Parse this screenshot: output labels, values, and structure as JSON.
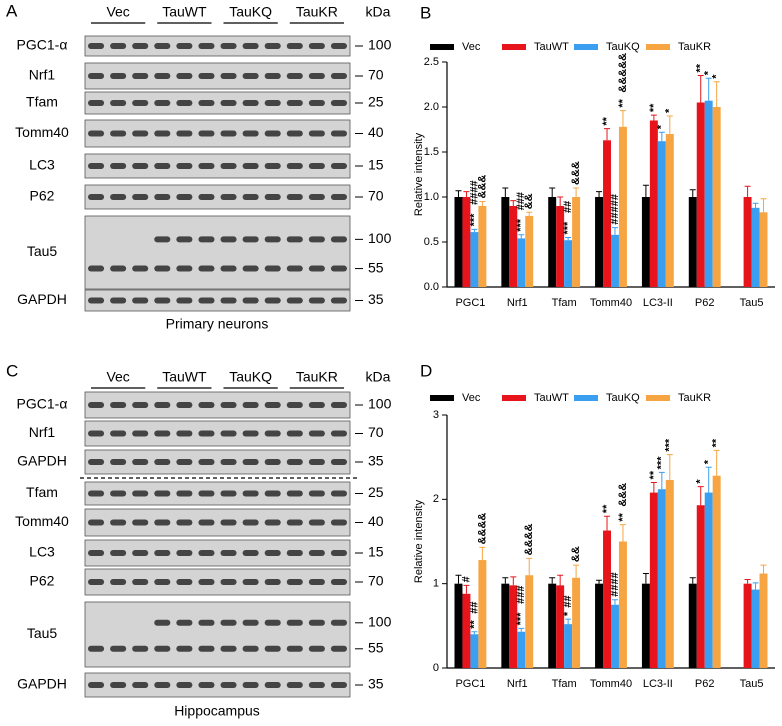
{
  "panels": [
    "A",
    "B",
    "C",
    "D"
  ],
  "blots": [
    {
      "groups": [
        "Vec",
        "TauWT",
        "TauKQ",
        "TauKR"
      ],
      "unit": "kDa",
      "caption": "Primary neurons",
      "rows": [
        {
          "label": "PGC1-α",
          "kda": [
            "100"
          ]
        },
        {
          "label": "Nrf1",
          "kda": [
            "70"
          ]
        },
        {
          "label": "Tfam",
          "kda": [
            "25"
          ]
        },
        {
          "label": "Tomm40",
          "kda": [
            "40"
          ]
        },
        {
          "label": "LC3",
          "kda": [
            "15"
          ]
        },
        {
          "label": "P62",
          "kda": [
            "70"
          ]
        },
        {
          "label": "Tau5",
          "kda": [
            "100",
            "55"
          ]
        },
        {
          "label": "GAPDH",
          "kda": [
            "35"
          ]
        }
      ]
    },
    {
      "groups": [
        "Vec",
        "TauWT",
        "TauKQ",
        "TauKR"
      ],
      "unit": "kDa",
      "caption": "Hippocampus",
      "rows": [
        {
          "label": "PGC1-α",
          "kda": [
            "100"
          ]
        },
        {
          "label": "Nrf1",
          "kda": [
            "70"
          ]
        },
        {
          "label": "GAPDH",
          "kda": [
            "35"
          ]
        },
        {
          "label": "Tfam",
          "kda": [
            "25"
          ]
        },
        {
          "label": "Tomm40",
          "kda": [
            "40"
          ]
        },
        {
          "label": "LC3",
          "kda": [
            "15"
          ]
        },
        {
          "label": "P62",
          "kda": [
            "70"
          ]
        },
        {
          "label": "Tau5",
          "kda": [
            "100",
            "55"
          ]
        },
        {
          "label": "GAPDH",
          "kda": [
            "35"
          ]
        }
      ]
    }
  ],
  "chart_data": [
    {
      "type": "bar",
      "y_label": "Relative intensity",
      "categories": [
        "PGC1",
        "Nrf1",
        "Tfam",
        "Tomm40",
        "LC3-II",
        "P62",
        "Tau5"
      ],
      "ylim": [
        0,
        2.5
      ],
      "yticks": [
        {
          "value": 0,
          "label": "0.0"
        },
        0.5,
        {
          "value": 1,
          "label": "1.0"
        },
        1.5,
        {
          "value": 2,
          "label": "2.0"
        },
        2.5
      ],
      "significance_colors": {
        "*": "#000000",
        "#": "#e8141c",
        "&": "#3a9ff0"
      },
      "series": [
        {
          "name": "Vec",
          "color": "#000000",
          "values": [
            1,
            1,
            1,
            1,
            1,
            1,
            null
          ],
          "errors": [
            0.07,
            0.1,
            0.1,
            0.06,
            0.13,
            0.08,
            null
          ]
        },
        {
          "name": "TauWT",
          "color": "#e8141c",
          "values": [
            1.0,
            0.9,
            0.9,
            1.63,
            1.85,
            2.05,
            1.0
          ],
          "errors": [
            0.06,
            0.06,
            0.1,
            0.13,
            0.06,
            0.3,
            0.12
          ],
          "significance": [
            null,
            null,
            null,
            [
              "**"
            ],
            [
              "**"
            ],
            [
              "**"
            ],
            null
          ]
        },
        {
          "name": "TauKQ",
          "color": "#3a9ff0",
          "values": [
            0.61,
            0.54,
            0.52,
            0.58,
            1.62,
            2.07,
            0.88
          ],
          "errors": [
            0.03,
            0.04,
            0.03,
            0.08,
            0.1,
            0.25,
            0.05
          ],
          "significance": [
            [
              "***",
              "####"
            ],
            [
              "***",
              "###"
            ],
            [
              "***",
              "##"
            ],
            [
              "#####"
            ],
            [
              "*"
            ],
            [
              "*"
            ],
            null
          ]
        },
        {
          "name": "TauKR",
          "color": "#f7a543",
          "values": [
            0.9,
            0.79,
            1.0,
            1.78,
            1.7,
            2.0,
            0.83
          ],
          "errors": [
            0.05,
            0.04,
            0.1,
            0.18,
            0.2,
            0.28,
            0.15
          ],
          "significance": [
            [
              "&&&"
            ],
            [
              "&&"
            ],
            [
              "&&&"
            ],
            [
              "**",
              "&&&&&"
            ],
            [
              "*"
            ],
            [
              "*"
            ],
            null
          ]
        }
      ]
    },
    {
      "type": "bar",
      "y_label": "Relative intensity",
      "categories": [
        "PGC1",
        "Nrf1",
        "Tfam",
        "Tomm40",
        "LC3-II",
        "P62",
        "Tau5"
      ],
      "ylim": [
        0,
        3
      ],
      "yticks": [
        0,
        1,
        2,
        3
      ],
      "significance_colors": {
        "*": "#000000",
        "#": "#e8141c",
        "&": "#3a9ff0"
      },
      "series": [
        {
          "name": "Vec",
          "color": "#000000",
          "values": [
            1,
            1,
            1,
            1,
            1,
            1,
            null
          ],
          "errors": [
            0.1,
            0.07,
            0.07,
            0.04,
            0.12,
            0.07,
            null
          ]
        },
        {
          "name": "TauWT",
          "color": "#e8141c",
          "values": [
            0.88,
            0.98,
            0.98,
            1.63,
            2.08,
            1.93,
            1.0
          ],
          "errors": [
            0.1,
            0.1,
            0.12,
            0.17,
            0.12,
            0.22,
            0.05
          ],
          "significance": [
            [
              "#"
            ],
            null,
            null,
            [
              "**"
            ],
            [
              "**"
            ],
            [
              "*"
            ],
            null
          ]
        },
        {
          "name": "TauKQ",
          "color": "#3a9ff0",
          "values": [
            0.4,
            0.43,
            0.52,
            0.75,
            2.12,
            2.08,
            0.93
          ],
          "errors": [
            0.03,
            0.04,
            0.06,
            0.06,
            0.2,
            0.3,
            0.08
          ],
          "significance": [
            [
              "**",
              "##"
            ],
            [
              "***",
              "###"
            ],
            [
              "*",
              "##"
            ],
            [
              "####"
            ],
            [
              "***"
            ],
            [
              "*"
            ],
            null
          ]
        },
        {
          "name": "TauKR",
          "color": "#f7a543",
          "values": [
            1.28,
            1.1,
            1.07,
            1.5,
            2.23,
            2.28,
            1.12
          ],
          "errors": [
            0.15,
            0.2,
            0.15,
            0.2,
            0.3,
            0.3,
            0.1
          ],
          "significance": [
            [
              "&&&&"
            ],
            [
              "&&&&"
            ],
            [
              "&&"
            ],
            [
              "**",
              "&&&"
            ],
            [
              "***"
            ],
            [
              "**"
            ],
            null
          ]
        }
      ]
    }
  ]
}
